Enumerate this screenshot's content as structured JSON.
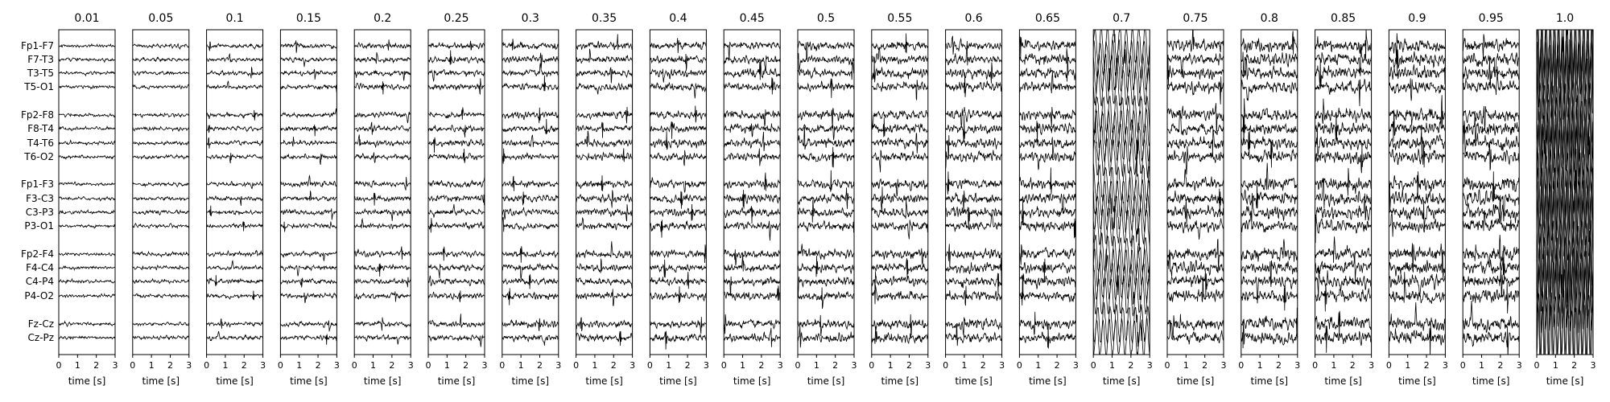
{
  "chart_data": {
    "type": "line",
    "subplot_titles": [
      "0.01",
      "0.05",
      "0.1",
      "0.15",
      "0.2",
      "0.25",
      "0.3",
      "0.35",
      "0.4",
      "0.45",
      "0.5",
      "0.55",
      "0.6",
      "0.65",
      "0.7",
      "0.75",
      "0.8",
      "0.85",
      "0.9",
      "0.95",
      "1.0"
    ],
    "channels": [
      "Fp1-F7",
      "F7-T3",
      "T3-T5",
      "T5-O1",
      "Fp2-F8",
      "F8-T4",
      "T4-T6",
      "T6-O2",
      "Fp1-F3",
      "F3-C3",
      "C3-P3",
      "P3-O1",
      "Fp2-F4",
      "F4-C4",
      "C4-P4",
      "P4-O2",
      "Fz-Cz",
      "Cz-Pz"
    ],
    "xlabel": "time [s]",
    "xticks": [
      0,
      1,
      2,
      3
    ],
    "xlim": [
      0,
      3
    ],
    "line_color": "#000000",
    "grid": false
  }
}
